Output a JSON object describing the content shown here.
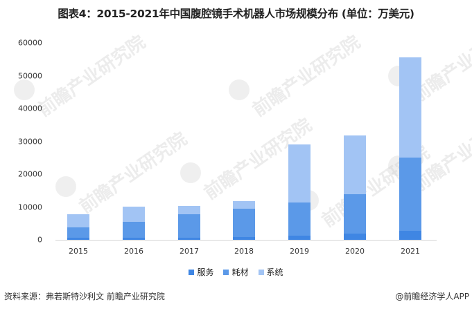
{
  "title": "图表4：2015-2021年中国腹腔镜手术机器人市场规模分布 (单位：万美元)",
  "chart_data": {
    "type": "bar",
    "stacked": true,
    "title": "图表4：2015-2021年中国腹腔镜手术机器人市场规模分布 (单位：万美元)",
    "xlabel": "",
    "ylabel": "",
    "ylim": [
      0,
      60000
    ],
    "yticks": [
      0,
      10000,
      20000,
      30000,
      40000,
      50000,
      60000
    ],
    "categories": [
      "2015",
      "2016",
      "2017",
      "2018",
      "2019",
      "2020",
      "2021"
    ],
    "series": [
      {
        "name": "服务",
        "color": "#3f86e3",
        "values": [
          600,
          650,
          650,
          900,
          1300,
          1900,
          2800
        ]
      },
      {
        "name": "耗材",
        "color": "#5b99e8",
        "values": [
          3200,
          4800,
          7150,
          8500,
          10100,
          12000,
          22300
        ]
      },
      {
        "name": "系统",
        "color": "#a2c4f4",
        "values": [
          4000,
          4650,
          2500,
          2400,
          17600,
          17900,
          30500
        ]
      }
    ],
    "grid": false,
    "legend_position": "bottom"
  },
  "legend": {
    "items": [
      "服务",
      "耗材",
      "系统"
    ]
  },
  "footer": {
    "source": "资料来源：弗若斯特沙利文 前瞻产业研究院",
    "brand": "@前瞻经济学人APP"
  },
  "watermark": {
    "text": "前瞻产业研究院"
  }
}
